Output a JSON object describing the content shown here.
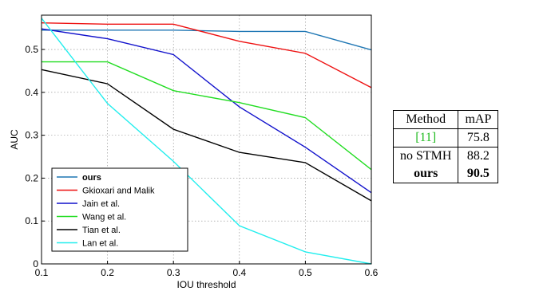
{
  "chart_data": {
    "type": "line",
    "xlabel": "IOU threshold",
    "ylabel": "AUC",
    "xlim": [
      0.1,
      0.6
    ],
    "ylim": [
      0,
      0.58
    ],
    "xticks": [
      "0.1",
      "0.2",
      "0.3",
      "0.4",
      "0.5",
      "0.6"
    ],
    "yticks": [
      "0",
      "0.1",
      "0.2",
      "0.3",
      "0.4",
      "0.5"
    ],
    "grid": true,
    "legend": "bottom-left",
    "x": [
      0.1,
      0.2,
      0.3,
      0.4,
      0.5,
      0.6
    ],
    "series": [
      {
        "name": "ours",
        "color": "#1f77b4",
        "bold": true,
        "values": [
          0.545,
          0.545,
          0.545,
          0.542,
          0.542,
          0.499
        ]
      },
      {
        "name": "Gkioxari and Malik",
        "color": "#ee1111",
        "bold": false,
        "values": [
          0.562,
          0.559,
          0.559,
          0.519,
          0.491,
          0.411
        ]
      },
      {
        "name": "Jain et al.",
        "color": "#1111cc",
        "bold": false,
        "values": [
          0.548,
          0.525,
          0.488,
          0.366,
          0.272,
          0.166
        ]
      },
      {
        "name": "Wang et al.",
        "color": "#22dd22",
        "bold": false,
        "values": [
          0.471,
          0.471,
          0.404,
          0.376,
          0.341,
          0.22
        ]
      },
      {
        "name": "Tian et al.",
        "color": "#000000",
        "bold": false,
        "values": [
          0.453,
          0.42,
          0.314,
          0.26,
          0.236,
          0.147
        ]
      },
      {
        "name": "Lan et al.",
        "color": "#22eeee",
        "bold": false,
        "values": [
          0.573,
          0.374,
          0.239,
          0.089,
          0.028,
          0.0
        ]
      }
    ]
  },
  "table": {
    "headers": [
      "Method",
      "mAP"
    ],
    "rows": [
      {
        "method": "[11]",
        "map": "75.8"
      },
      {
        "method": "no STMH",
        "map": "88.2"
      },
      {
        "method": "ours",
        "map": "90.5"
      }
    ]
  }
}
